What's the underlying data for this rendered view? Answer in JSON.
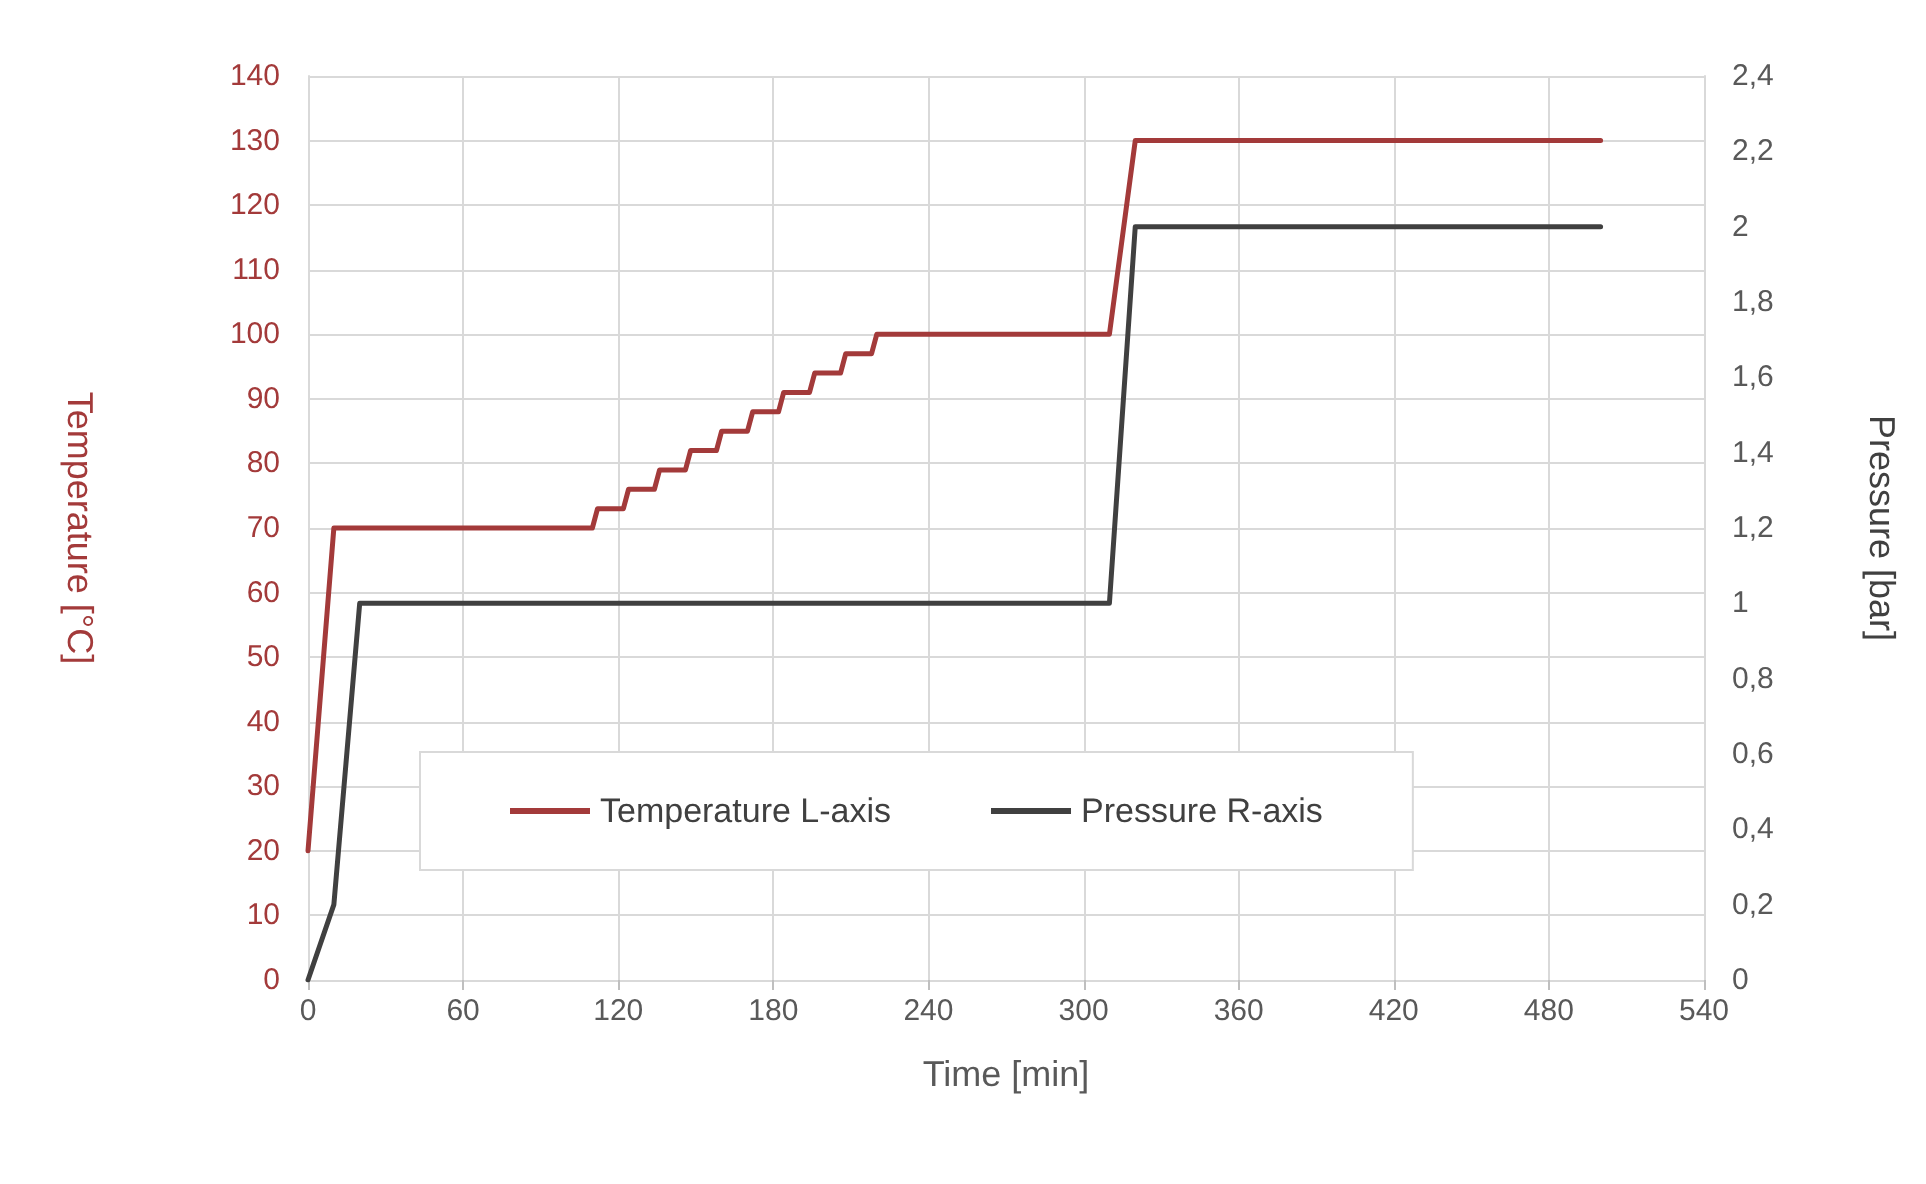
{
  "chart_data": {
    "type": "line",
    "xlabel": "Time [min]",
    "ylabel": "Temperature [°C]",
    "y2label": "Pressure [bar]",
    "xlim": [
      0,
      540
    ],
    "xticks": [
      0,
      60,
      120,
      180,
      240,
      300,
      360,
      420,
      480,
      540
    ],
    "ylim": [
      0,
      140
    ],
    "yticks": [
      0,
      10,
      20,
      30,
      40,
      50,
      60,
      70,
      80,
      90,
      100,
      110,
      120,
      130,
      140
    ],
    "y2lim": [
      0,
      2.4
    ],
    "y2ticks": [
      0,
      {
        "value": 0.2,
        "label": "0,2"
      },
      {
        "value": 0.4,
        "label": "0,4"
      },
      {
        "value": 0.6,
        "label": "0,6"
      },
      {
        "value": 0.8,
        "label": "0,8"
      },
      1,
      {
        "value": 1.2,
        "label": "1,2"
      },
      {
        "value": 1.4,
        "label": "1,4"
      },
      {
        "value": 1.6,
        "label": "1,6"
      },
      {
        "value": 1.8,
        "label": "1,8"
      },
      2,
      {
        "value": 2.2,
        "label": "2,2"
      },
      {
        "value": 2.4,
        "label": "2,4"
      }
    ],
    "grid": true,
    "legend": "bottom",
    "marker": "none",
    "line_style": "solid",
    "series": [
      {
        "name": "Temperature L-axis",
        "color": "#a33a3a",
        "x": [
          0,
          10,
          110,
          112,
          122,
          124,
          134,
          136,
          146,
          148,
          158,
          160,
          170,
          172,
          182,
          184,
          194,
          196,
          206,
          208,
          218,
          220,
          310,
          320,
          500
        ],
        "values": [
          20,
          70,
          70,
          73,
          73,
          76,
          76,
          79,
          79,
          82,
          82,
          85,
          85,
          88,
          88,
          91,
          91,
          94,
          94,
          97,
          97,
          100,
          100,
          130,
          130
        ]
      },
      {
        "name": "Pressure R-axis",
        "color": "#404040",
        "axis": "y2",
        "x": [
          0,
          10,
          20,
          310,
          320,
          500
        ],
        "values": [
          0,
          0.2,
          1,
          1,
          2,
          2
        ]
      }
    ]
  }
}
